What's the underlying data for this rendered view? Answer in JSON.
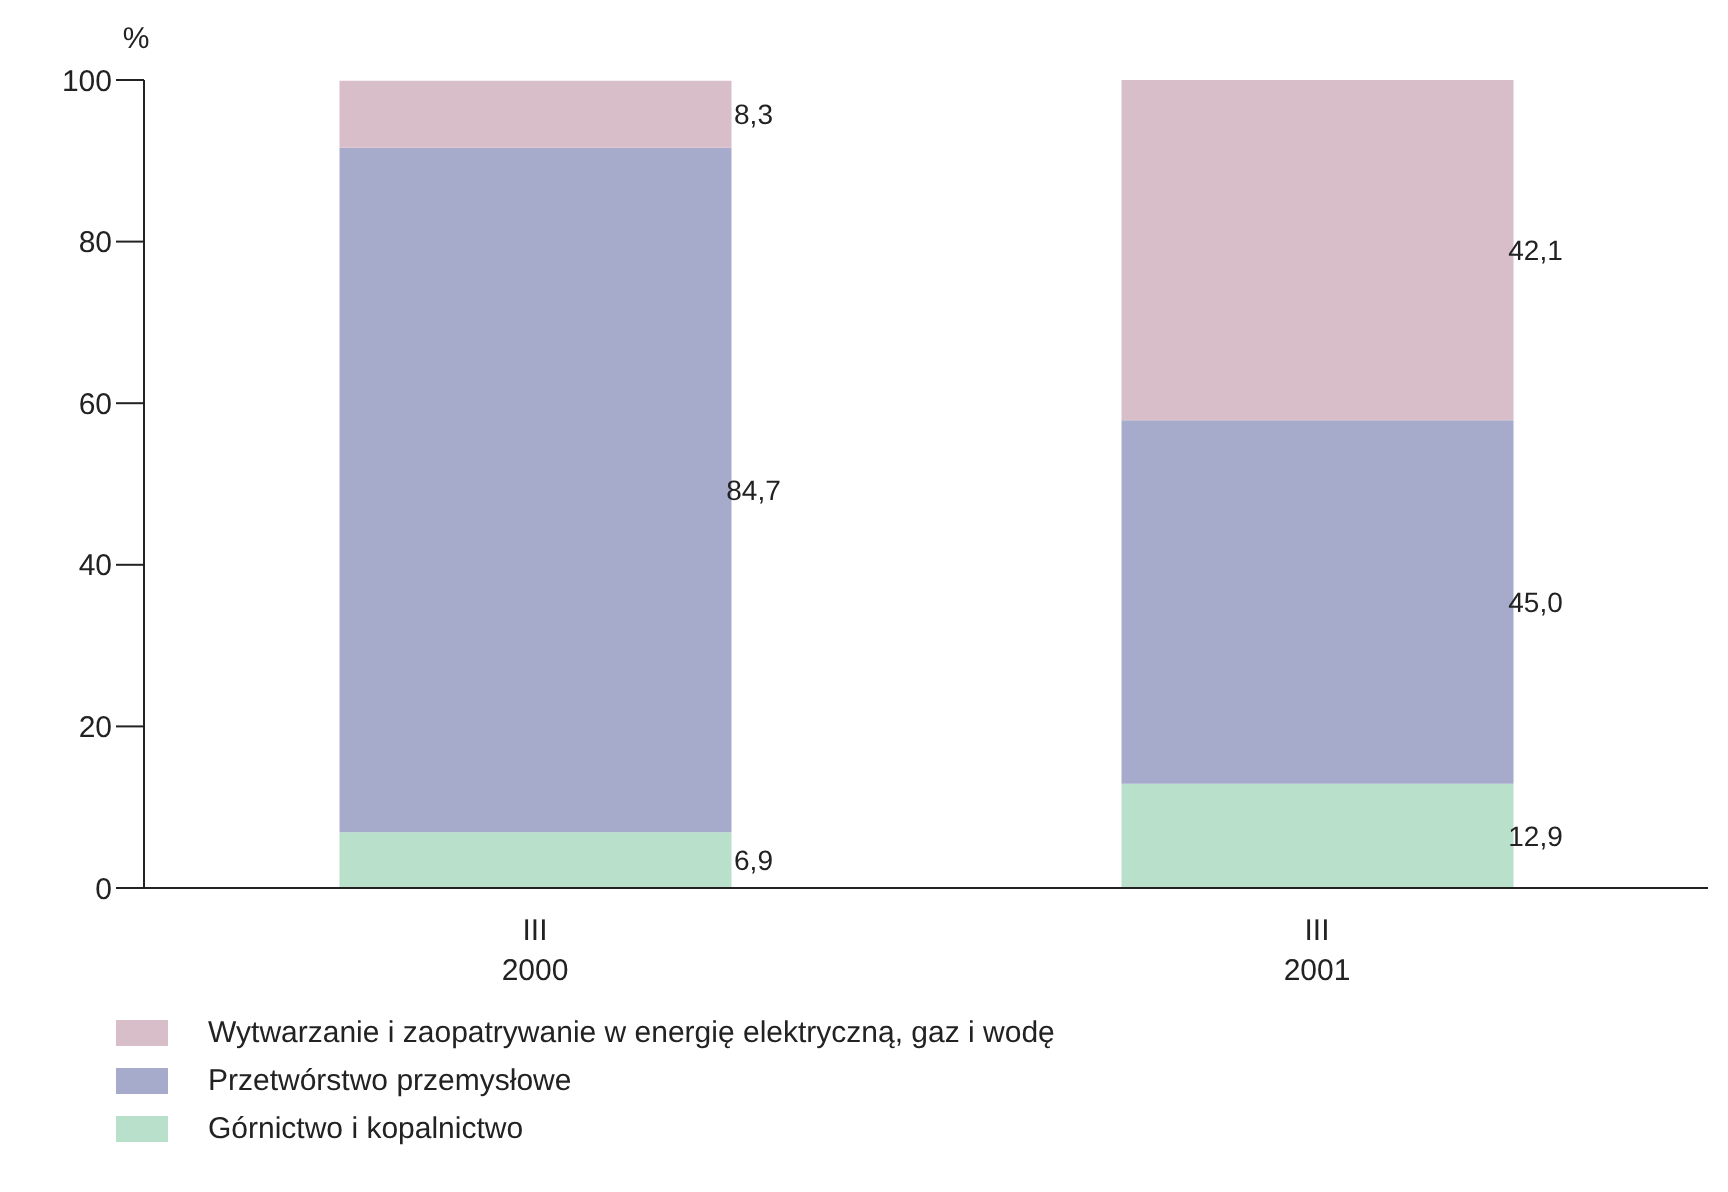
{
  "chart_data": {
    "type": "bar",
    "stacked": true,
    "ylabel": "%",
    "categories": [
      "III\n2000",
      "III\n2001"
    ],
    "series": [
      {
        "name": "Górnictwo i kopalnictwo",
        "color": "#b9e0cb",
        "values": [
          6.9,
          12.9
        ],
        "value_labels": [
          "6,9",
          "12,9"
        ]
      },
      {
        "name": "Przetwórstwo przemysłowe",
        "color": "#a6abcb",
        "values": [
          84.7,
          45.0
        ],
        "value_labels": [
          "84,7",
          "45,0"
        ]
      },
      {
        "name": "Wytwarzanie i zaopatrywanie w energię elektryczną, gaz i wodę",
        "color": "#d7bec9",
        "values": [
          8.3,
          42.1
        ],
        "value_labels": [
          "8,3",
          "42,1"
        ]
      }
    ],
    "ylim": [
      0,
      100
    ],
    "yticks": [
      0,
      20,
      40,
      60,
      80,
      100
    ],
    "grid": false,
    "legend": "bottom"
  }
}
